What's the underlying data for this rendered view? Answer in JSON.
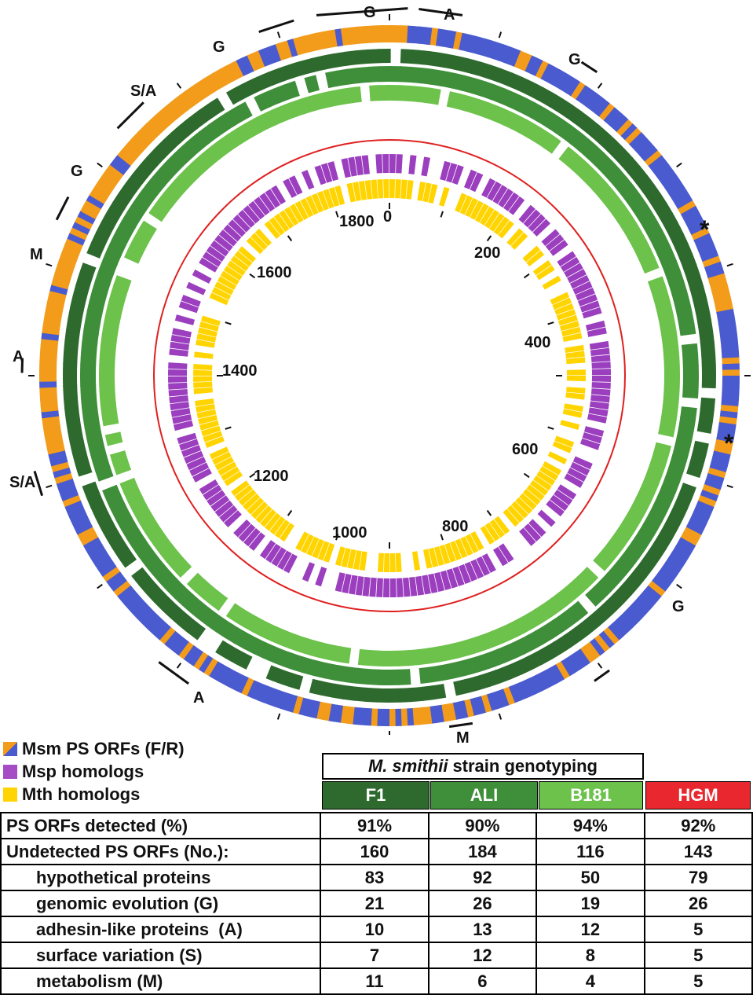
{
  "figure": {
    "tick_labels": [
      "0",
      "200",
      "400",
      "600",
      "800",
      "1000",
      "1200",
      "1400",
      "1600",
      "1800"
    ],
    "region_labels": [
      "G",
      "A",
      "G",
      "G",
      "S/A",
      "G",
      "M",
      "A",
      "S/A",
      "A",
      "M",
      "G"
    ],
    "asterisk": "*",
    "ring_colors": {
      "orange": "#f39c1b",
      "blue": "#4a5bd0",
      "dark_green": "#2e6a2e",
      "mid_green": "#3f8f3a",
      "light_green": "#6cc24a",
      "red": "#e02020",
      "purple": "#9b3fbf",
      "yellow": "#ffd400"
    }
  },
  "legend": {
    "items": [
      {
        "label": "Msm PS ORFs (F/R)",
        "icon": "orange-blue-swatch"
      },
      {
        "label": "Msp homologs",
        "icon": "purple-swatch"
      },
      {
        "label": "Mth homologs",
        "icon": "yellow-swatch"
      }
    ]
  },
  "table": {
    "title_italic": "M. smithii",
    "title_rest": "strain genotyping",
    "columns": [
      {
        "label": "F1",
        "color": "#2e6a2e"
      },
      {
        "label": "ALI",
        "color": "#3f8f3a"
      },
      {
        "label": "B181",
        "color": "#6cc24a"
      },
      {
        "label": "HGM",
        "color": "#e8282e"
      }
    ],
    "rows": [
      {
        "label": "PS ORFs detected (%)",
        "values": [
          "91%",
          "90%",
          "94%",
          "92%"
        ]
      },
      {
        "label": "Undetected PS ORFs (No.):",
        "values": [
          "160",
          "184",
          "116",
          "143"
        ]
      },
      {
        "label": "hypothetical proteins",
        "values": [
          "83",
          "92",
          "50",
          "79"
        ]
      },
      {
        "label": "genomic evolution (G)",
        "values": [
          "21",
          "26",
          "19",
          "26"
        ]
      },
      {
        "label": "adhesin-like proteins  (A)",
        "values": [
          "10",
          "13",
          "12",
          "5"
        ]
      },
      {
        "label": "surface variation (S)",
        "values": [
          "7",
          "12",
          "8",
          "5"
        ]
      },
      {
        "label": "metabolism (M)",
        "values": [
          "11",
          "6",
          "4",
          "5"
        ]
      }
    ]
  }
}
